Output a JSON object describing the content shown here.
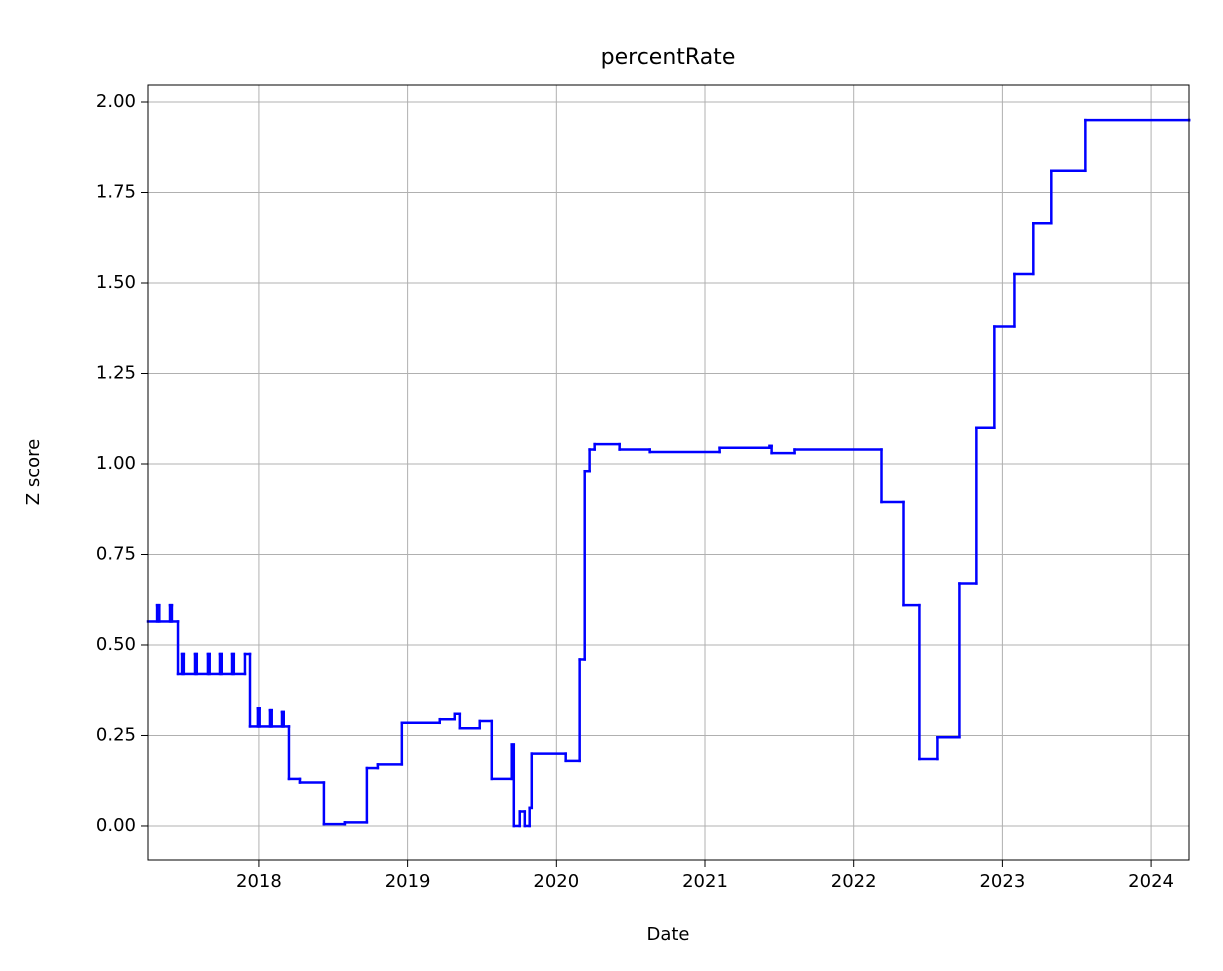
{
  "chart_data": {
    "type": "line",
    "title": "percentRate",
    "x_label": "Date",
    "y_label": "Z score",
    "drawstyle": "steps-post",
    "grid": true,
    "series": [
      {
        "color": "#0000ff",
        "x": [
          2017.254,
          2017.315,
          2017.33,
          2017.402,
          2017.415,
          2017.456,
          2017.483,
          2017.495,
          2017.57,
          2017.582,
          2017.657,
          2017.669,
          2017.738,
          2017.75,
          2017.819,
          2017.831,
          2017.906,
          2017.94,
          2017.993,
          2018.005,
          2018.074,
          2018.086,
          2018.155,
          2018.167,
          2018.202,
          2018.276,
          2018.437,
          2018.578,
          2018.726,
          2018.8,
          2018.961,
          2019.216,
          2019.317,
          2019.351,
          2019.485,
          2019.566,
          2019.7,
          2019.714,
          2019.754,
          2019.788,
          2019.821,
          2019.835,
          2020.063,
          2020.157,
          2020.191,
          2020.224,
          2020.258,
          2020.426,
          2020.628,
          2021.098,
          2021.434,
          2021.448,
          2021.602,
          2022.187,
          2022.335,
          2022.442,
          2022.563,
          2022.711,
          2022.825,
          2022.946,
          2023.081,
          2023.208,
          2023.329,
          2023.558,
          2024.255
        ],
        "values": [
          0.565,
          0.61,
          0.565,
          0.61,
          0.565,
          0.42,
          0.475,
          0.42,
          0.475,
          0.42,
          0.475,
          0.42,
          0.475,
          0.42,
          0.475,
          0.42,
          0.475,
          0.275,
          0.325,
          0.275,
          0.32,
          0.275,
          0.315,
          0.275,
          0.13,
          0.12,
          0.005,
          0.01,
          0.16,
          0.17,
          0.285,
          0.295,
          0.31,
          0.27,
          0.29,
          0.13,
          0.225,
          0.0,
          0.04,
          0.0,
          0.05,
          0.2,
          0.18,
          0.46,
          0.98,
          1.04,
          1.055,
          1.04,
          1.033,
          1.045,
          1.05,
          1.03,
          1.04,
          0.895,
          0.61,
          0.185,
          0.245,
          0.67,
          1.1,
          1.38,
          1.525,
          1.665,
          1.81,
          1.95,
          1.95
        ]
      }
    ],
    "xlim": [
      2017.254,
      2024.255
    ],
    "xticks": [
      2018,
      2019,
      2020,
      2021,
      2022,
      2023,
      2024
    ],
    "ylim": [
      -0.094,
      2.047
    ],
    "yticks": [
      {
        "value": 0,
        "label": "0.00"
      },
      {
        "value": 0.25,
        "label": "0.25"
      },
      {
        "value": 0.5,
        "label": "0.50"
      },
      {
        "value": 0.75,
        "label": "0.75"
      },
      {
        "value": 1,
        "label": "1.00"
      },
      {
        "value": 1.25,
        "label": "1.25"
      },
      {
        "value": 1.5,
        "label": "1.50"
      },
      {
        "value": 1.75,
        "label": "1.75"
      },
      {
        "value": 2,
        "label": "2.00"
      }
    ]
  }
}
